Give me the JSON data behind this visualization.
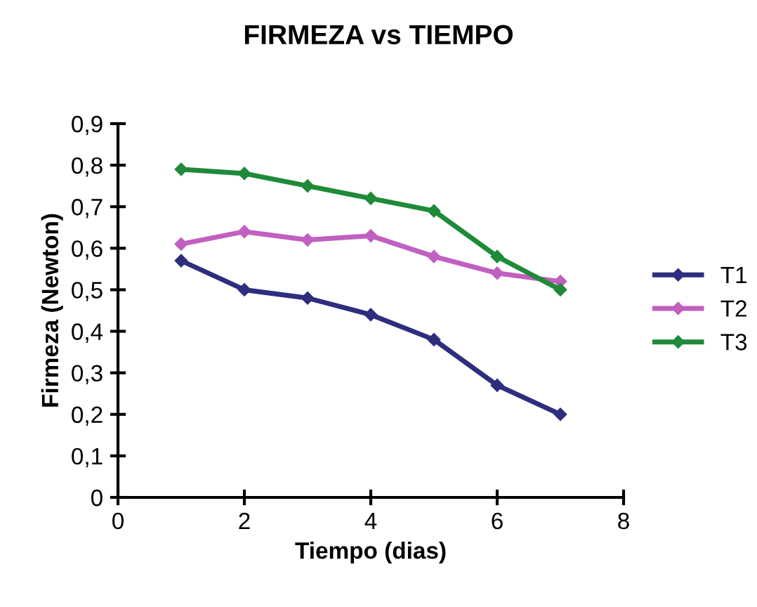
{
  "chart_data": {
    "type": "line",
    "title": "FIRMEZA vs TIEMPO",
    "xlabel": "Tiempo (dias)",
    "ylabel": "Firmeza (Newton)",
    "x": [
      1,
      2,
      3,
      4,
      5,
      6,
      7
    ],
    "series": [
      {
        "name": "T1",
        "color": "#2e2e7e",
        "values": [
          0.57,
          0.5,
          0.48,
          0.44,
          0.38,
          0.27,
          0.2
        ]
      },
      {
        "name": "T2",
        "color": "#c060c0",
        "values": [
          0.61,
          0.64,
          0.62,
          0.63,
          0.58,
          0.54,
          0.52
        ]
      },
      {
        "name": "T3",
        "color": "#1f8a3a",
        "values": [
          0.79,
          0.78,
          0.75,
          0.72,
          0.69,
          0.58,
          0.5
        ]
      }
    ],
    "xlim": [
      0,
      8
    ],
    "xticks": [
      0,
      2,
      4,
      6,
      8
    ],
    "ylim": [
      0,
      0.9
    ],
    "yticks": [
      {
        "value": 0,
        "label": "0"
      },
      {
        "value": 0.1,
        "label": "0,1"
      },
      {
        "value": 0.2,
        "label": "0,2"
      },
      {
        "value": 0.3,
        "label": "0,3"
      },
      {
        "value": 0.4,
        "label": "0,4"
      },
      {
        "value": 0.5,
        "label": "0,5"
      },
      {
        "value": 0.6,
        "label": "0,6"
      },
      {
        "value": 0.7,
        "label": "0,7"
      },
      {
        "value": 0.8,
        "label": "0,8"
      },
      {
        "value": 0.9,
        "label": "0,9"
      }
    ],
    "marker": "diamond",
    "line_style": "solid",
    "legend": "right",
    "grid": false
  }
}
